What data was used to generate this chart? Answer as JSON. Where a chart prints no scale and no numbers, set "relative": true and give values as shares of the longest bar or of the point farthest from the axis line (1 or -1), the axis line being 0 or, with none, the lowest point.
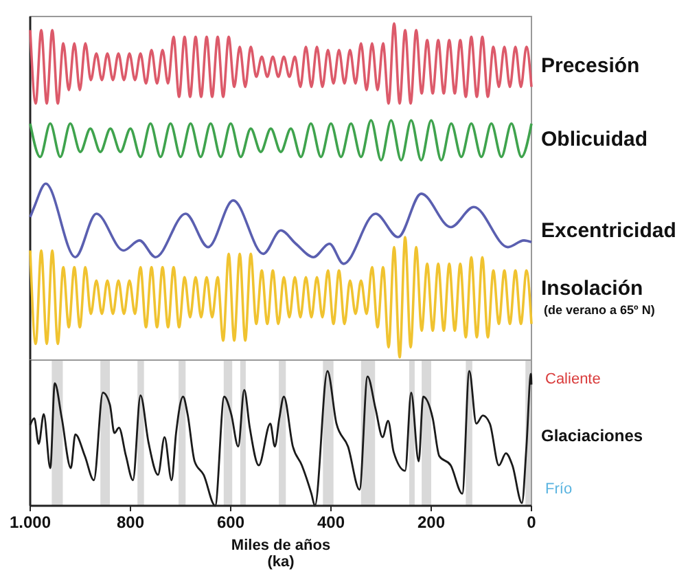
{
  "chart_data": [
    {
      "type": "line",
      "relative": true,
      "xlim": [
        1000,
        0
      ],
      "annotations": [
        "(de verano a 65º N)"
      ],
      "series": [
        {
          "name": "Precesión",
          "color": "#dc5a6a",
          "x": [
            1000,
            989,
            978,
            967,
            956,
            945,
            934,
            923,
            912,
            901,
            890,
            879,
            868,
            857,
            846,
            835,
            824,
            813,
            802,
            791,
            780,
            769,
            758,
            747,
            736,
            725,
            714,
            703,
            692,
            681,
            670,
            659,
            648,
            637,
            626,
            615,
            604,
            593,
            582,
            571,
            560,
            549,
            538,
            527,
            516,
            505,
            494,
            483,
            472,
            461,
            450,
            439,
            428,
            417,
            406,
            395,
            384,
            373,
            362,
            351,
            340,
            329,
            318,
            307,
            296,
            285,
            274,
            263,
            252,
            241,
            230,
            219,
            208,
            197,
            186,
            175,
            164,
            153,
            142,
            131,
            120,
            109,
            98,
            87,
            76,
            65,
            54,
            43,
            32,
            21,
            10,
            0
          ],
          "values": [
            0.98,
            0.76,
            0.98,
            0.76,
            0.98,
            0.76,
            0.94,
            0.8,
            0.94,
            0.8,
            0.94,
            0.83,
            0.91,
            0.83,
            0.91,
            0.83,
            0.91,
            0.83,
            0.91,
            0.83,
            0.91,
            0.82,
            0.92,
            0.82,
            0.92,
            0.82,
            0.96,
            0.78,
            0.96,
            0.78,
            0.96,
            0.78,
            0.96,
            0.78,
            0.96,
            0.78,
            0.96,
            0.81,
            0.93,
            0.81,
            0.93,
            0.84,
            0.9,
            0.84,
            0.9,
            0.84,
            0.9,
            0.84,
            0.9,
            0.81,
            0.93,
            0.81,
            0.93,
            0.81,
            0.92,
            0.82,
            0.92,
            0.82,
            0.92,
            0.82,
            0.94,
            0.8,
            0.94,
            0.8,
            0.94,
            0.76,
            1.0,
            0.76,
            0.98,
            0.76,
            0.98,
            0.79,
            0.95,
            0.79,
            0.95,
            0.79,
            0.95,
            0.79,
            0.95,
            0.78,
            0.96,
            0.78,
            0.96,
            0.78,
            0.93,
            0.81,
            0.93,
            0.81,
            0.93,
            0.81,
            0.93,
            0.81
          ]
        },
        {
          "name": "Oblicuidad",
          "color": "#3fa34d",
          "x": [
            1000,
            980,
            960,
            940,
            920,
            900,
            880,
            860,
            840,
            820,
            800,
            780,
            760,
            740,
            720,
            700,
            680,
            660,
            640,
            620,
            600,
            580,
            560,
            540,
            520,
            500,
            480,
            460,
            440,
            420,
            400,
            380,
            360,
            340,
            320,
            300,
            280,
            260,
            240,
            220,
            200,
            180,
            160,
            140,
            120,
            100,
            80,
            60,
            40,
            20,
            0
          ],
          "values": [
            0.7,
            0.6,
            0.7,
            0.6,
            0.7,
            0.615,
            0.685,
            0.615,
            0.685,
            0.615,
            0.685,
            0.6,
            0.7,
            0.6,
            0.7,
            0.6,
            0.7,
            0.6,
            0.7,
            0.6,
            0.7,
            0.6,
            0.685,
            0.615,
            0.685,
            0.615,
            0.685,
            0.6,
            0.7,
            0.6,
            0.7,
            0.6,
            0.7,
            0.6,
            0.71,
            0.59,
            0.71,
            0.59,
            0.71,
            0.59,
            0.71,
            0.59,
            0.7,
            0.6,
            0.7,
            0.6,
            0.7,
            0.6,
            0.7,
            0.6,
            0.7
          ]
        },
        {
          "name": "Excentricidad",
          "color": "#5a5fb0",
          "x": [
            1000,
            992,
            969,
            910,
            868,
            814,
            782,
            750,
            690,
            645,
            595,
            535,
            500,
            470,
            435,
            403,
            375,
            311,
            266,
            220,
            161,
            115,
            47,
            15,
            0
          ],
          "values": [
            0.42,
            0.45,
            0.52,
            0.3,
            0.43,
            0.32,
            0.35,
            0.3,
            0.43,
            0.33,
            0.47,
            0.31,
            0.38,
            0.34,
            0.3,
            0.34,
            0.28,
            0.43,
            0.36,
            0.49,
            0.39,
            0.45,
            0.33,
            0.35,
            0.345
          ]
        },
        {
          "name": "Insolación",
          "color": "#f0c330",
          "x": [
            1000,
            989,
            978,
            967,
            956,
            945,
            934,
            923,
            912,
            901,
            890,
            879,
            868,
            857,
            846,
            835,
            824,
            813,
            802,
            791,
            780,
            769,
            758,
            747,
            736,
            725,
            714,
            703,
            692,
            681,
            670,
            659,
            648,
            637,
            626,
            615,
            604,
            593,
            582,
            571,
            560,
            549,
            538,
            527,
            516,
            505,
            494,
            483,
            472,
            461,
            450,
            439,
            428,
            417,
            406,
            395,
            384,
            373,
            362,
            351,
            340,
            329,
            318,
            307,
            296,
            285,
            274,
            263,
            252,
            241,
            230,
            219,
            208,
            197,
            186,
            175,
            164,
            153,
            142,
            131,
            120,
            109,
            98,
            87,
            76,
            65,
            54,
            43,
            32,
            21,
            10,
            0
          ],
          "values": [
            0.32,
            0.04,
            0.32,
            0.04,
            0.32,
            0.04,
            0.27,
            0.09,
            0.27,
            0.09,
            0.27,
            0.13,
            0.23,
            0.13,
            0.23,
            0.13,
            0.23,
            0.13,
            0.23,
            0.13,
            0.27,
            0.09,
            0.27,
            0.09,
            0.27,
            0.09,
            0.27,
            0.09,
            0.24,
            0.12,
            0.24,
            0.12,
            0.24,
            0.12,
            0.24,
            0.05,
            0.31,
            0.05,
            0.31,
            0.05,
            0.31,
            0.1,
            0.26,
            0.1,
            0.26,
            0.1,
            0.24,
            0.12,
            0.24,
            0.12,
            0.24,
            0.12,
            0.24,
            0.12,
            0.26,
            0.1,
            0.26,
            0.1,
            0.23,
            0.13,
            0.23,
            0.13,
            0.27,
            0.09,
            0.27,
            0.03,
            0.33,
            0,
            0.36,
            0.03,
            0.33,
            0.08,
            0.28,
            0.08,
            0.28,
            0.08,
            0.28,
            0.08,
            0.28,
            0.06,
            0.3,
            0.06,
            0.3,
            0.06,
            0.26,
            0.1,
            0.26,
            0.1,
            0.26,
            0.1,
            0.26,
            0.1
          ]
        }
      ]
    },
    {
      "type": "line",
      "relative": true,
      "xlim": [
        1000,
        0
      ],
      "xticks": [
        {
          "value": 1000,
          "label": "1.000"
        },
        800,
        600,
        400,
        200,
        0
      ],
      "xlabel": "Miles de años\n(ka)",
      "annotations": [
        "Caliente",
        "Frío"
      ],
      "bands": [
        {
          "axis": "x",
          "from": 957,
          "to": 935,
          "color": "#d9d9d9"
        },
        {
          "axis": "x",
          "from": 860,
          "to": 841,
          "color": "#d9d9d9"
        },
        {
          "axis": "x",
          "from": 786,
          "to": 773,
          "color": "#d9d9d9"
        },
        {
          "axis": "x",
          "from": 704,
          "to": 690,
          "color": "#d9d9d9"
        },
        {
          "axis": "x",
          "from": 614,
          "to": 597,
          "color": "#d9d9d9"
        },
        {
          "axis": "x",
          "from": 581,
          "to": 570,
          "color": "#d9d9d9"
        },
        {
          "axis": "x",
          "from": 504,
          "to": 490,
          "color": "#d9d9d9"
        },
        {
          "axis": "x",
          "from": 416,
          "to": 395,
          "color": "#d9d9d9"
        },
        {
          "axis": "x",
          "from": 340,
          "to": 312,
          "color": "#d9d9d9"
        },
        {
          "axis": "x",
          "from": 244,
          "to": 233,
          "color": "#d9d9d9"
        },
        {
          "axis": "x",
          "from": 219,
          "to": 200,
          "color": "#d9d9d9"
        },
        {
          "axis": "x",
          "from": 131,
          "to": 118,
          "color": "#d9d9d9"
        },
        {
          "axis": "x",
          "from": 12,
          "to": 0,
          "color": "#d9d9d9"
        }
      ],
      "series": [
        {
          "name": "Glaciaciones",
          "color": "#1a1a1a",
          "x": [
            1000,
            992,
            983,
            973,
            960,
            951,
            937,
            919,
            910,
            891,
            873,
            855,
            841,
            832,
            823,
            809,
            795,
            780,
            764,
            745,
            732,
            718,
            709,
            695,
            686,
            672,
            654,
            631,
            613,
            599,
            585,
            573,
            562,
            544,
            521,
            512,
            503,
            494,
            476,
            458,
            439,
            432,
            407,
            389,
            366,
            343,
            327,
            311,
            297,
            286,
            275,
            252,
            240,
            225,
            216,
            197,
            184,
            161,
            138,
            124,
            110,
            97,
            83,
            65,
            51,
            38,
            19,
            10,
            1,
            0
          ],
          "values": [
            0.6,
            0.65,
            0.46,
            0.68,
            0.28,
            0.91,
            0.65,
            0.28,
            0.53,
            0.37,
            0.19,
            0.84,
            0.75,
            0.54,
            0.58,
            0.37,
            0.19,
            0.82,
            0.47,
            0.23,
            0.51,
            0.19,
            0.54,
            0.81,
            0.68,
            0.33,
            0.23,
            0,
            0.81,
            0.68,
            0.44,
            0.86,
            0.58,
            0.3,
            0.61,
            0.44,
            0.65,
            0.81,
            0.44,
            0.3,
            0.09,
            0,
            1.0,
            0.61,
            0.44,
            0.12,
            0.96,
            0.72,
            0.51,
            0.63,
            0.4,
            0.26,
            0.84,
            0.33,
            0.81,
            0.65,
            0.37,
            0.3,
            0.09,
            1.0,
            0.61,
            0.67,
            0.61,
            0.3,
            0.39,
            0.3,
            0.02,
            0.44,
            0.98,
            0.9
          ]
        }
      ]
    }
  ]
}
